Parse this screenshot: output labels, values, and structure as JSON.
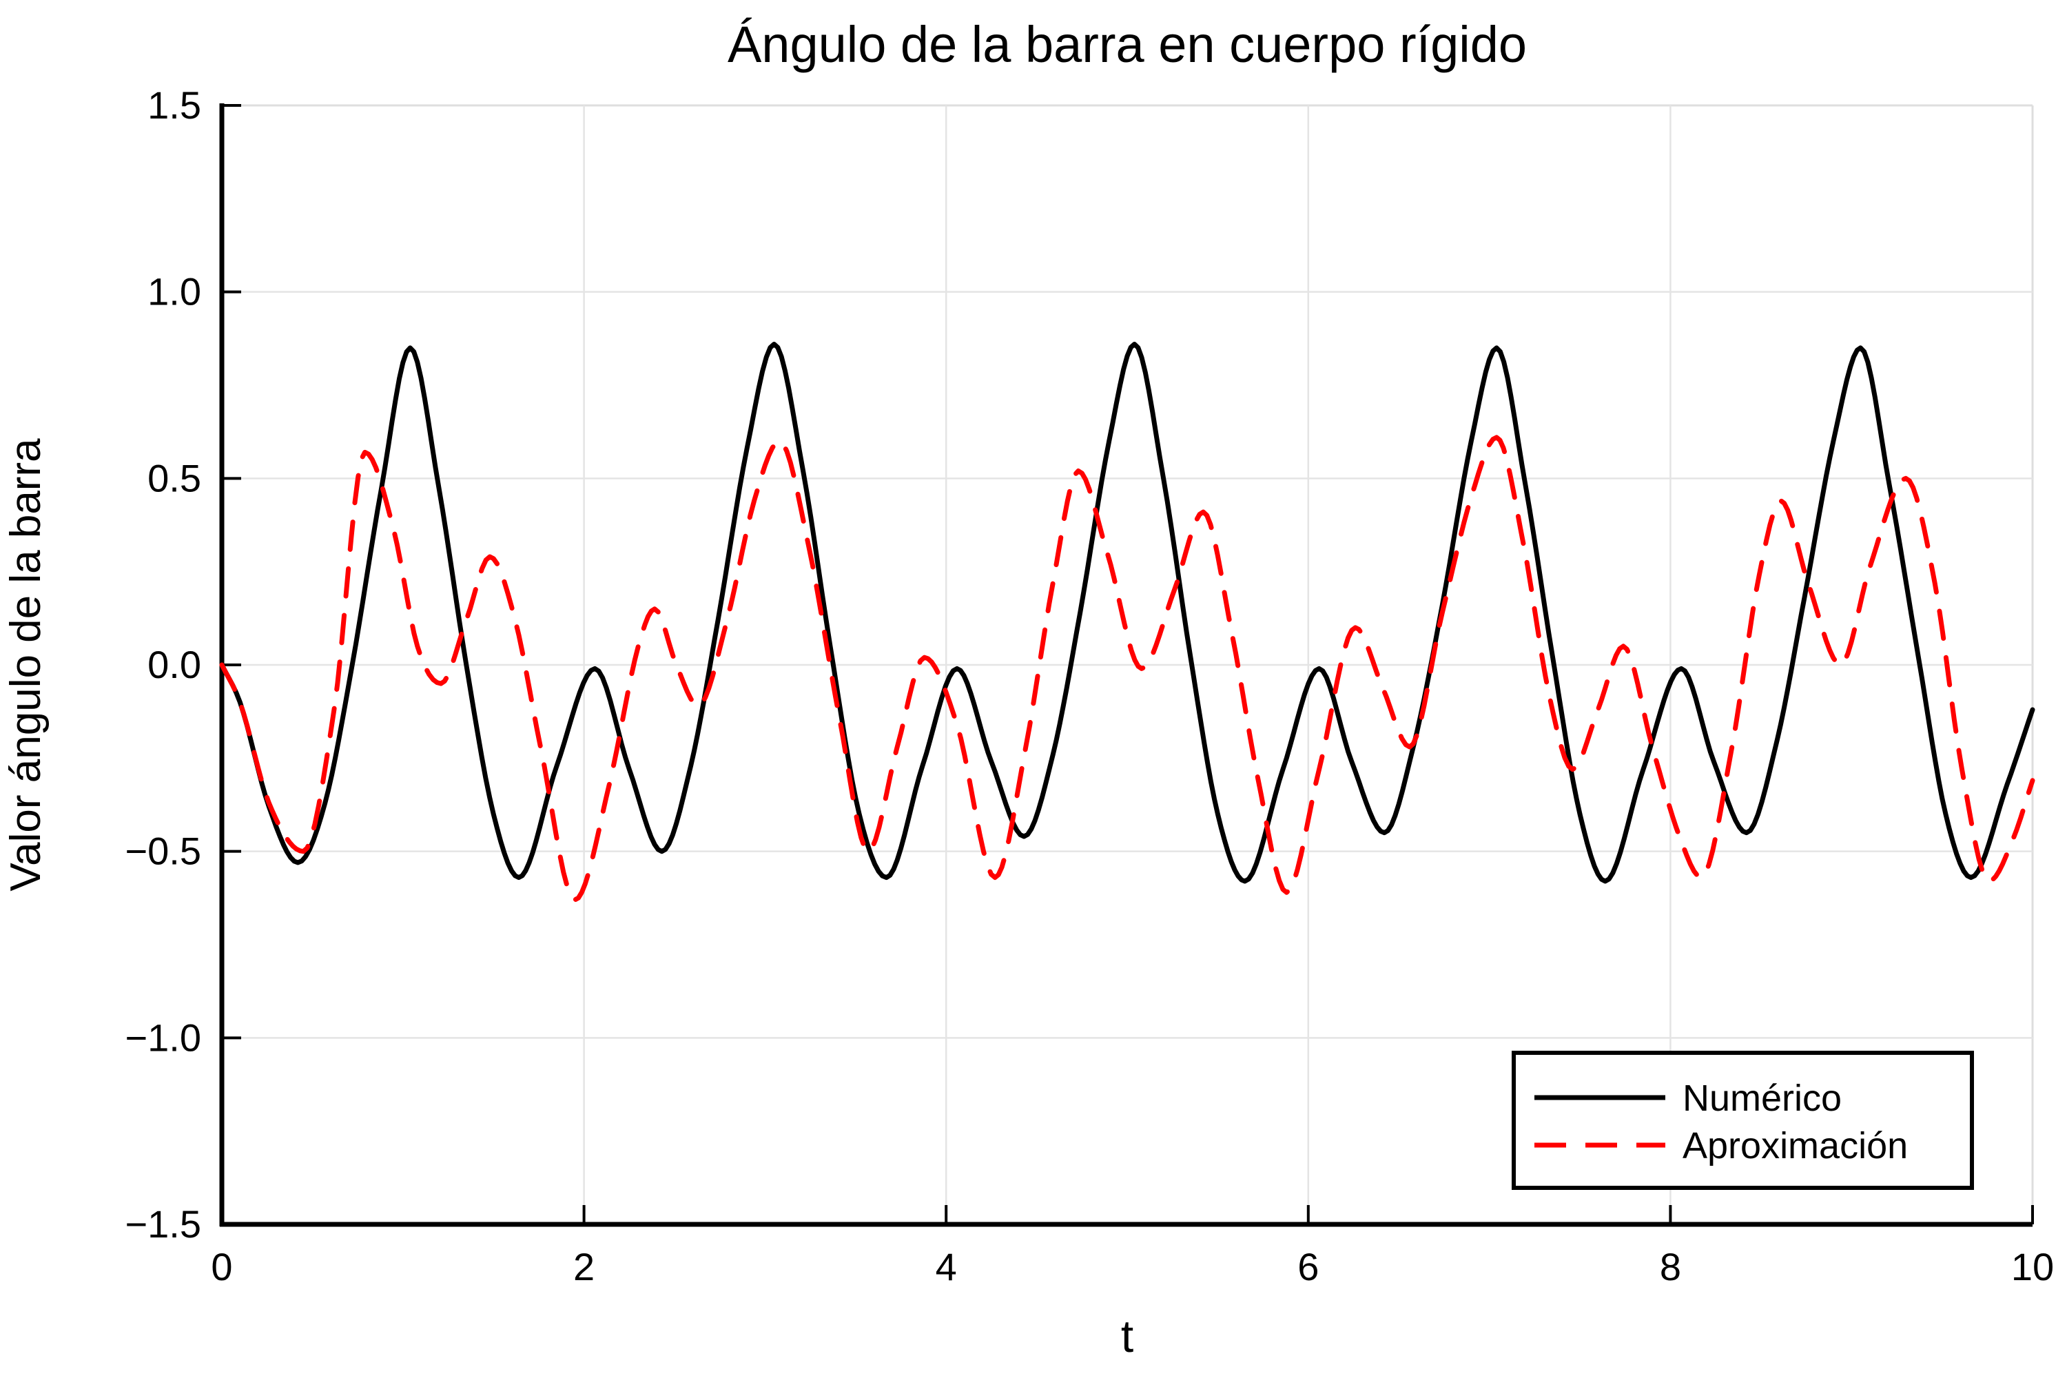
{
  "title": "Ángulo de la barra en cuerpo rígido",
  "x_axis": {
    "label": "t",
    "range": [
      0,
      10
    ],
    "ticks": [
      {
        "v": 0,
        "label": "0"
      },
      {
        "v": 2,
        "label": "2"
      },
      {
        "v": 4,
        "label": "4"
      },
      {
        "v": 6,
        "label": "6"
      },
      {
        "v": 8,
        "label": "8"
      },
      {
        "v": 10,
        "label": "10"
      }
    ]
  },
  "y_axis": {
    "label": "Valor ángulo de la barra",
    "range": [
      -1.5,
      1.5
    ],
    "ticks": [
      {
        "v": -1.5,
        "label": "−1.5"
      },
      {
        "v": -1.0,
        "label": "−1.0"
      },
      {
        "v": -0.5,
        "label": "−0.5"
      },
      {
        "v": 0.0,
        "label": "0.0"
      },
      {
        "v": 0.5,
        "label": "0.5"
      },
      {
        "v": 1.0,
        "label": "1.0"
      },
      {
        "v": 1.5,
        "label": "1.5"
      }
    ]
  },
  "legend": {
    "items": [
      {
        "label": "Numérico",
        "color": "#000000",
        "style": "solid"
      },
      {
        "label": "Aproximación",
        "color": "#ff0000",
        "style": "dashed"
      }
    ]
  },
  "colors": {
    "background": "#ffffff",
    "axis": "#000000",
    "grid": "#e4e4e4",
    "frame": "#dedede",
    "numerico": "#000000",
    "aproximacion": "#ff0000"
  },
  "chart_data": {
    "type": "line",
    "title": "Ángulo de la barra en cuerpo rígido",
    "xlabel": "t",
    "ylabel": "Valor ángulo de la barra",
    "xlim": [
      0,
      10
    ],
    "ylim": [
      -1.5,
      1.5
    ],
    "grid": true,
    "legend_position": "bottom-right",
    "series": [
      {
        "name": "Numérico",
        "color": "#000000",
        "style": "solid",
        "points": [
          [
            0.0,
            0.0
          ],
          [
            0.1,
            -0.1
          ],
          [
            0.26,
            -0.38
          ],
          [
            0.42,
            -0.53
          ],
          [
            0.57,
            -0.37
          ],
          [
            0.72,
            0.0
          ],
          [
            0.88,
            0.47
          ],
          [
            1.04,
            0.85
          ],
          [
            1.2,
            0.47
          ],
          [
            1.35,
            0.0
          ],
          [
            1.5,
            -0.4
          ],
          [
            1.64,
            -0.57
          ],
          [
            1.85,
            -0.27
          ],
          [
            2.06,
            -0.01
          ],
          [
            2.25,
            -0.28
          ],
          [
            2.43,
            -0.5
          ],
          [
            2.59,
            -0.27
          ],
          [
            2.74,
            0.12
          ],
          [
            2.9,
            0.58
          ],
          [
            3.05,
            0.86
          ],
          [
            3.21,
            0.52
          ],
          [
            3.36,
            0.05
          ],
          [
            3.52,
            -0.4
          ],
          [
            3.67,
            -0.57
          ],
          [
            3.87,
            -0.27
          ],
          [
            4.06,
            -0.01
          ],
          [
            4.25,
            -0.26
          ],
          [
            4.43,
            -0.46
          ],
          [
            4.59,
            -0.24
          ],
          [
            4.74,
            0.14
          ],
          [
            4.9,
            0.6
          ],
          [
            5.04,
            0.86
          ],
          [
            5.2,
            0.5
          ],
          [
            5.35,
            0.02
          ],
          [
            5.5,
            -0.4
          ],
          [
            5.65,
            -0.58
          ],
          [
            5.86,
            -0.28
          ],
          [
            6.06,
            -0.01
          ],
          [
            6.24,
            -0.26
          ],
          [
            6.42,
            -0.45
          ],
          [
            6.58,
            -0.22
          ],
          [
            6.74,
            0.16
          ],
          [
            6.9,
            0.6
          ],
          [
            7.04,
            0.85
          ],
          [
            7.2,
            0.48
          ],
          [
            7.35,
            0.02
          ],
          [
            7.5,
            -0.4
          ],
          [
            7.64,
            -0.58
          ],
          [
            7.85,
            -0.28
          ],
          [
            8.06,
            -0.01
          ],
          [
            8.24,
            -0.26
          ],
          [
            8.42,
            -0.45
          ],
          [
            8.59,
            -0.2
          ],
          [
            8.74,
            0.18
          ],
          [
            8.9,
            0.6
          ],
          [
            9.05,
            0.85
          ],
          [
            9.21,
            0.48
          ],
          [
            9.37,
            0.02
          ],
          [
            9.52,
            -0.4
          ],
          [
            9.66,
            -0.57
          ],
          [
            9.86,
            -0.32
          ],
          [
            10.0,
            -0.12
          ]
        ]
      },
      {
        "name": "Aproximación",
        "color": "#ff0000",
        "style": "dashed",
        "points": [
          [
            0.0,
            0.0
          ],
          [
            0.1,
            -0.1
          ],
          [
            0.26,
            -0.37
          ],
          [
            0.45,
            -0.5
          ],
          [
            0.62,
            -0.12
          ],
          [
            0.79,
            0.57
          ],
          [
            0.95,
            0.36
          ],
          [
            1.08,
            0.05
          ],
          [
            1.21,
            -0.05
          ],
          [
            1.35,
            0.12
          ],
          [
            1.48,
            0.29
          ],
          [
            1.62,
            0.12
          ],
          [
            1.76,
            -0.22
          ],
          [
            1.95,
            -0.63
          ],
          [
            2.14,
            -0.32
          ],
          [
            2.3,
            0.05
          ],
          [
            2.39,
            0.15
          ],
          [
            2.51,
            0.0
          ],
          [
            2.63,
            -0.11
          ],
          [
            2.79,
            0.12
          ],
          [
            2.94,
            0.44
          ],
          [
            3.08,
            0.6
          ],
          [
            3.24,
            0.32
          ],
          [
            3.41,
            -0.14
          ],
          [
            3.57,
            -0.5
          ],
          [
            3.73,
            -0.22
          ],
          [
            3.88,
            0.02
          ],
          [
            4.06,
            -0.16
          ],
          [
            4.27,
            -0.57
          ],
          [
            4.44,
            -0.22
          ],
          [
            4.59,
            0.22
          ],
          [
            4.73,
            0.52
          ],
          [
            4.89,
            0.3
          ],
          [
            5.08,
            -0.01
          ],
          [
            5.26,
            0.2
          ],
          [
            5.42,
            0.41
          ],
          [
            5.58,
            0.08
          ],
          [
            5.72,
            -0.3
          ],
          [
            5.88,
            -0.61
          ],
          [
            6.06,
            -0.28
          ],
          [
            6.26,
            0.1
          ],
          [
            6.41,
            -0.06
          ],
          [
            6.56,
            -0.22
          ],
          [
            6.74,
            0.14
          ],
          [
            6.9,
            0.45
          ],
          [
            7.04,
            0.61
          ],
          [
            7.19,
            0.32
          ],
          [
            7.33,
            -0.08
          ],
          [
            7.46,
            -0.28
          ],
          [
            7.6,
            -0.12
          ],
          [
            7.74,
            0.05
          ],
          [
            7.9,
            -0.22
          ],
          [
            8.05,
            -0.46
          ],
          [
            8.17,
            -0.57
          ],
          [
            8.34,
            -0.22
          ],
          [
            8.49,
            0.24
          ],
          [
            8.61,
            0.44
          ],
          [
            8.76,
            0.22
          ],
          [
            8.94,
            0.0
          ],
          [
            9.1,
            0.26
          ],
          [
            9.3,
            0.5
          ],
          [
            9.46,
            0.22
          ],
          [
            9.61,
            -0.28
          ],
          [
            9.76,
            -0.58
          ],
          [
            9.89,
            -0.47
          ],
          [
            10.0,
            -0.31
          ]
        ]
      }
    ]
  }
}
